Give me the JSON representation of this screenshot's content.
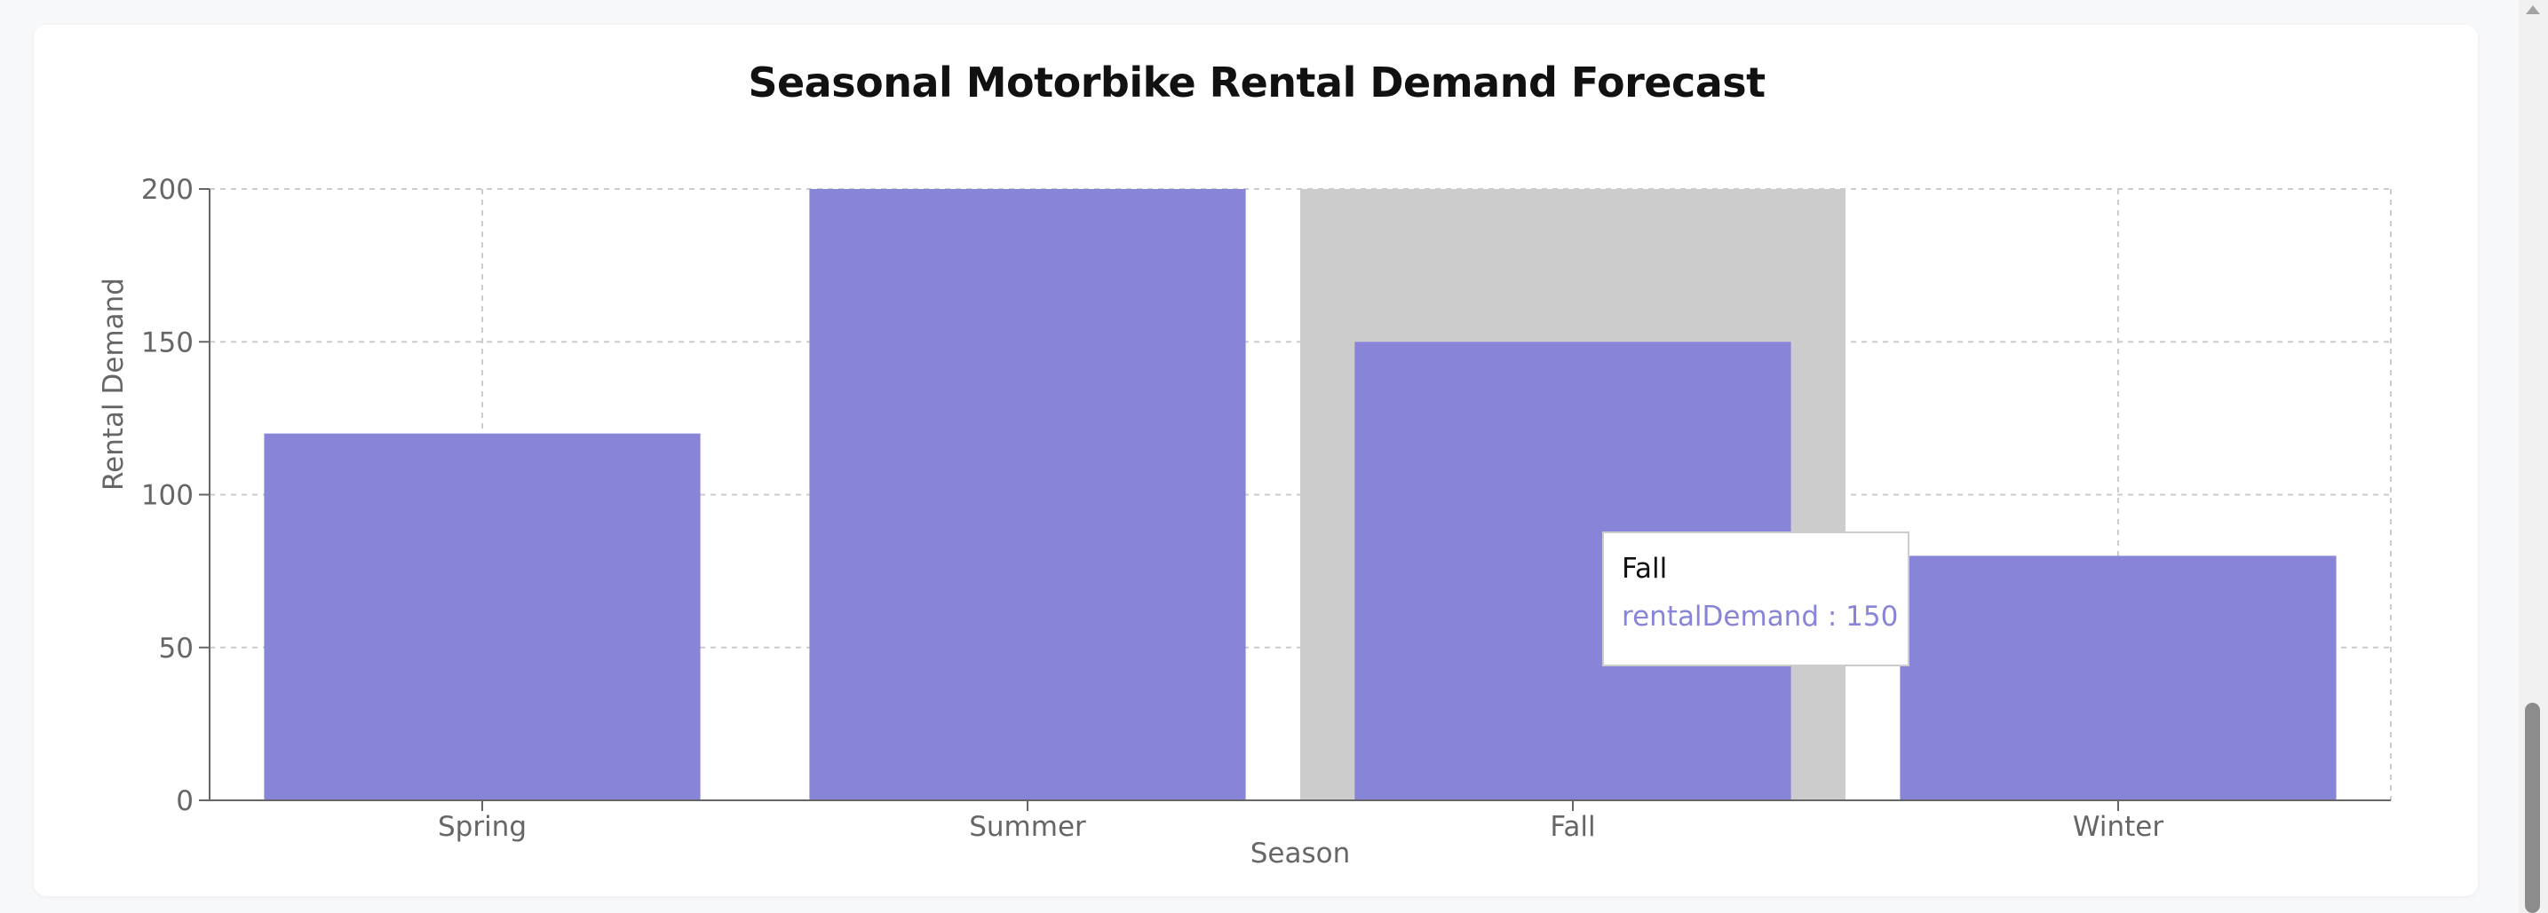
{
  "chart_data": {
    "type": "bar",
    "title": "Seasonal Motorbike Rental Demand Forecast",
    "xlabel": "Season",
    "ylabel": "Rental Demand",
    "categories": [
      "Spring",
      "Summer",
      "Fall",
      "Winter"
    ],
    "series": [
      {
        "key": "rentalDemand",
        "values": [
          120,
          200,
          150,
          80
        ]
      }
    ],
    "ylim": [
      0,
      200
    ],
    "yticks": [
      0,
      50,
      100,
      150,
      200
    ],
    "grid": true,
    "bar_color": "#8884d8",
    "cursor_color": "#cccccc",
    "active_index": 2
  },
  "tooltip": {
    "label": "Fall",
    "item": "rentalDemand : 150"
  }
}
